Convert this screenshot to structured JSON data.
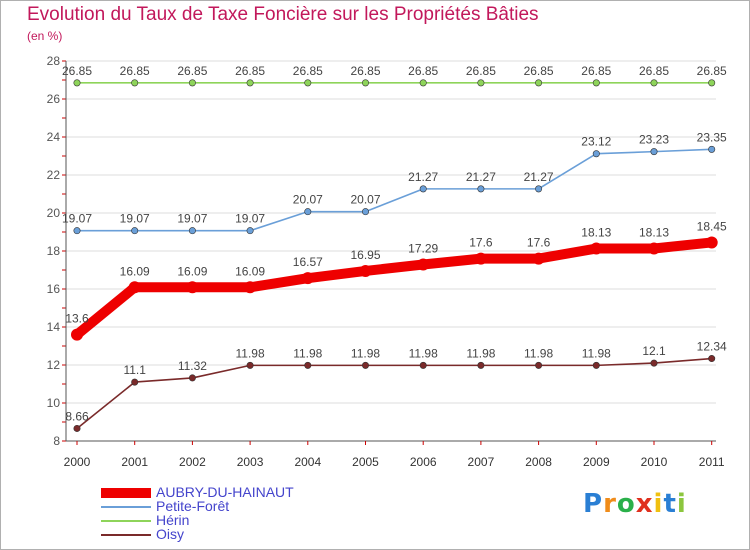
{
  "title": "Evolution du Taux de Taxe Foncière sur les Propriétés Bâties",
  "subtitle": "(en %)",
  "logo": {
    "letters": [
      "P",
      "r",
      "o",
      "x",
      "i",
      "t",
      "i"
    ],
    "colors": [
      "#2a7fd4",
      "#f08c1a",
      "#2ab04a",
      "#e0301e",
      "#f0c010",
      "#2a7fd4",
      "#8cc63e"
    ]
  },
  "colors": {
    "grid": "#dcdcdc",
    "axis": "#555555",
    "tick_red": "#cc0000",
    "label": "#555555"
  },
  "chart_data": {
    "type": "line",
    "title": "Evolution du Taux de Taxe Foncière sur les Propriétés Bâties",
    "ylabel": "(en %)",
    "xlabel": "",
    "ylim": [
      8,
      28
    ],
    "yticks": [
      8,
      10,
      12,
      14,
      16,
      18,
      20,
      22,
      24,
      26,
      28
    ],
    "grid": true,
    "legend_position": "bottom-left",
    "x": [
      "2000",
      "2001",
      "2002",
      "2003",
      "2004",
      "2005",
      "2006",
      "2007",
      "2008",
      "2009",
      "2010",
      "2011"
    ],
    "series": [
      {
        "name": "AUBRY-DU-HAINAUT",
        "color": "#ee0000",
        "bold": true,
        "values": [
          13.6,
          16.09,
          16.09,
          16.09,
          16.57,
          16.95,
          17.29,
          17.6,
          17.6,
          18.13,
          18.13,
          18.45
        ],
        "labels": [
          "13.6",
          "16.09",
          "16.09",
          "16.09",
          "16.57",
          "16.95",
          "17.29",
          "17.6",
          "17.6",
          "18.13",
          "18.13",
          "18.45"
        ]
      },
      {
        "name": "Petite-Forêt",
        "color": "#6a9fd8",
        "bold": false,
        "values": [
          19.07,
          19.07,
          19.07,
          19.07,
          20.07,
          20.07,
          21.27,
          21.27,
          21.27,
          23.12,
          23.23,
          23.35
        ],
        "labels": [
          "19.07",
          "19.07",
          "19.07",
          "19.07",
          "20.07",
          "20.07",
          "21.27",
          "21.27",
          "21.27",
          "23.12",
          "23.23",
          "23.35"
        ]
      },
      {
        "name": "Hérin",
        "color": "#8ed45a",
        "bold": false,
        "values": [
          26.85,
          26.85,
          26.85,
          26.85,
          26.85,
          26.85,
          26.85,
          26.85,
          26.85,
          26.85,
          26.85,
          26.85
        ],
        "labels": [
          "26.85",
          "26.85",
          "26.85",
          "26.85",
          "26.85",
          "26.85",
          "26.85",
          "26.85",
          "26.85",
          "26.85",
          "26.85",
          "26.85"
        ]
      },
      {
        "name": "Oisy",
        "color": "#7a2a2a",
        "bold": false,
        "values": [
          8.66,
          11.1,
          11.32,
          11.98,
          11.98,
          11.98,
          11.98,
          11.98,
          11.98,
          11.98,
          12.1,
          12.34
        ],
        "labels": [
          "8.66",
          "11.1",
          "11.32",
          "11.98",
          "11.98",
          "11.98",
          "11.98",
          "11.98",
          "11.98",
          "11.98",
          "12.1",
          "12.34"
        ]
      }
    ]
  }
}
